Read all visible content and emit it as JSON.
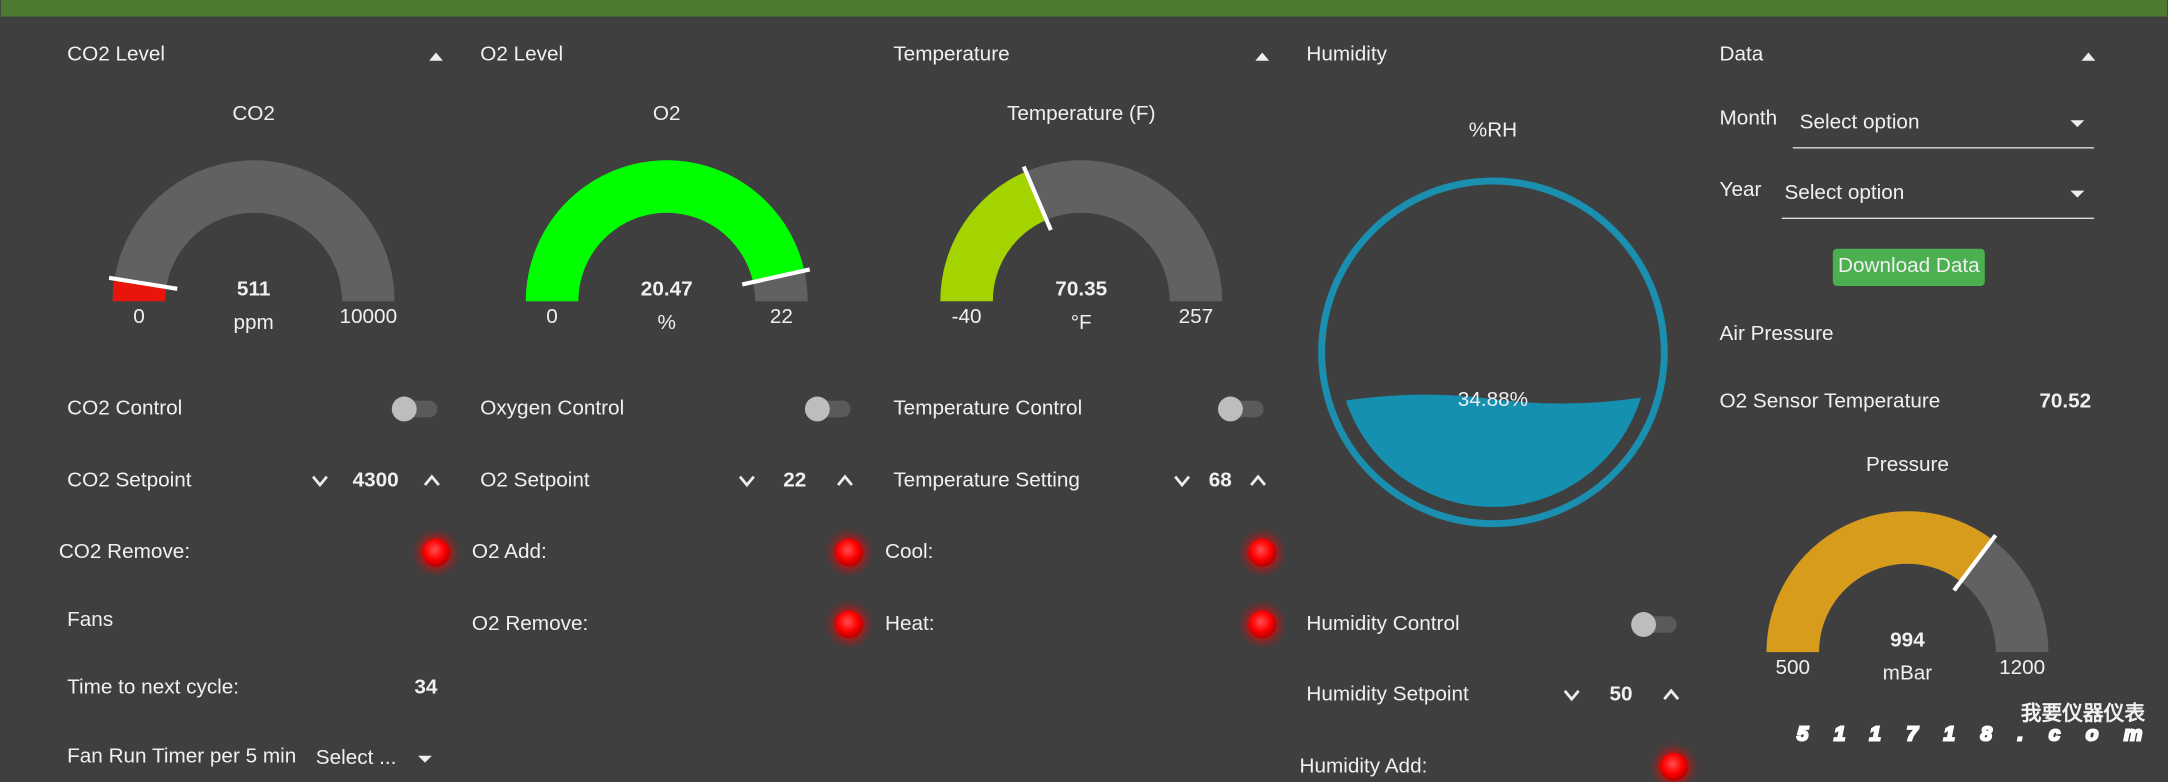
{
  "columns": [
    {
      "header": "CO2 Level",
      "gauge": {
        "title": "CO2",
        "value": 511,
        "min": 0,
        "max": 10000,
        "units": "ppm",
        "color": "#e8150c"
      },
      "control": "CO2 Control",
      "setpoint": {
        "label": "CO2 Setpoint",
        "value": 4300
      },
      "indicators": [
        "CO2 Remove:"
      ]
    },
    {
      "header": "O2 Level",
      "gauge": {
        "title": "O2",
        "value": 20.47,
        "min": 0,
        "max": 22,
        "units": "%",
        "color": "#00ff00"
      },
      "control": "Oxygen Control",
      "setpoint": {
        "label": "O2 Setpoint",
        "value": 22
      },
      "indicators": [
        "O2 Add:",
        "O2 Remove:"
      ]
    },
    {
      "header": "Temperature",
      "gauge": {
        "title": "Temperature (F)",
        "value": 70.35,
        "min": -40,
        "max": 257,
        "units": "°F",
        "color": "#a4d400"
      },
      "control": "Temperature Control",
      "setpoint": {
        "label": "Temperature Setting",
        "value": 68
      },
      "indicators": [
        "Cool:",
        "Heat:"
      ]
    }
  ],
  "fans": {
    "title": "Fans",
    "next_cycle": {
      "label": "Time to next cycle:",
      "value": 34
    },
    "run_timer": {
      "label": "Fan Run Timer per 5 min",
      "select": "Select ..."
    }
  },
  "humidity": {
    "header": "Humidity",
    "title": "%RH",
    "level": {
      "value": 34.88,
      "label": "34.88%"
    },
    "control": "Humidity Control",
    "setpoint": {
      "label": "Humidity Setpoint",
      "value": 50
    },
    "indicators": [
      "Humidity Add:"
    ]
  },
  "data_panel": {
    "header": "Data",
    "month": {
      "label": "Month",
      "select": "Select option"
    },
    "year": {
      "label": "Year",
      "select": "Select option"
    },
    "button": "Download Data",
    "air_pressure": "Air Pressure",
    "o2_temp": {
      "label": "O2 Sensor Temperature",
      "value": 70.52
    },
    "gauge": {
      "title": "Pressure",
      "value": 994,
      "min": 500,
      "max": 1200,
      "units": "mBar",
      "color": "#d89c1c"
    }
  },
  "watermark": {
    "site": "511718.com",
    "tagline": "我要仪器仪表"
  }
}
